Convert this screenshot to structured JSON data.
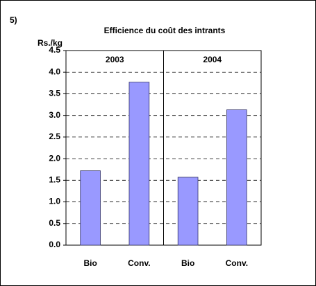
{
  "chart_data": {
    "type": "bar",
    "panel_label": "5)",
    "title": "Efficience du coût des intrants",
    "y_label": "Rs./kg",
    "groups": [
      "2003",
      "2004"
    ],
    "categories": [
      "Bio",
      "Conv.",
      "Bio",
      "Conv."
    ],
    "values": [
      1.72,
      3.77,
      1.57,
      3.13
    ],
    "color": "#9999ff",
    "ylim": [
      0,
      4.5
    ],
    "yticks": [
      {
        "value": 0,
        "label": "0.0"
      },
      {
        "value": 0.5,
        "label": "0.5"
      },
      {
        "value": 1,
        "label": "1.0"
      },
      {
        "value": 1.5,
        "label": "1.5"
      },
      {
        "value": 2,
        "label": "2.0"
      },
      {
        "value": 2.5,
        "label": "2.5"
      },
      {
        "value": 3,
        "label": "3.0"
      },
      {
        "value": 3.5,
        "label": "3.5"
      },
      {
        "value": 4,
        "label": "4.0"
      },
      {
        "value": 4.5,
        "label": "4.5"
      }
    ],
    "grid": true
  }
}
